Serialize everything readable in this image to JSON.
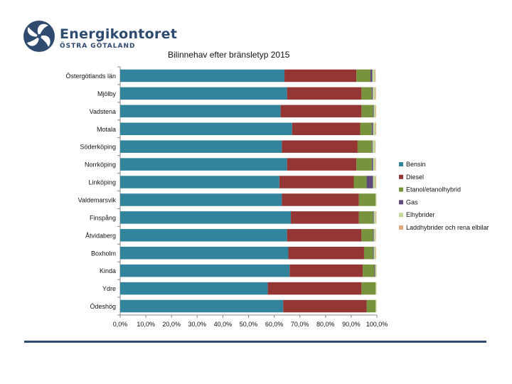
{
  "logo": {
    "name": "Energikontoret",
    "subtitle": "ÖSTRA GÖTALAND"
  },
  "chart_data": {
    "type": "bar",
    "orientation": "horizontal",
    "stacked": "percent",
    "title": "Bilinnehav efter bränsletyp 2015",
    "xlabel": "",
    "ylabel": "",
    "xlim": [
      0,
      100
    ],
    "xticks": [
      "0,0%",
      "10,0%",
      "20,0%",
      "30,0%",
      "40,0%",
      "50,0%",
      "60,0%",
      "70,0%",
      "80,0%",
      "90,0%",
      "100,0%"
    ],
    "legend_position": "right",
    "categories": [
      "Östergötlands län",
      "Mjölby",
      "Vadstena",
      "Motala",
      "Söderköping",
      "Norrköping",
      "Linköping",
      "Valdemarsvik",
      "Finspång",
      "Åtvidaberg",
      "Boxholm",
      "Kinda",
      "Ydre",
      "Ödeshög"
    ],
    "series": [
      {
        "name": "Bensin",
        "color": "#31849b",
        "values": [
          64.0,
          65.0,
          62.5,
          67.0,
          63.0,
          65.0,
          62.0,
          63.0,
          66.5,
          65.0,
          65.5,
          66.0,
          57.5,
          63.5
        ]
      },
      {
        "name": "Diesel",
        "color": "#943634",
        "values": [
          28.0,
          29.0,
          31.5,
          26.5,
          29.5,
          27.0,
          29.0,
          30.0,
          26.5,
          29.0,
          29.5,
          28.5,
          36.5,
          32.5
        ]
      },
      {
        "name": "Etanol/etanolhybrid",
        "color": "#77933c",
        "values": [
          5.5,
          4.0,
          4.5,
          4.5,
          5.5,
          6.0,
          5.0,
          6.5,
          5.5,
          4.5,
          3.5,
          4.5,
          5.5,
          3.5
        ]
      },
      {
        "name": "Gas",
        "color": "#5f497a",
        "values": [
          0.7,
          0.4,
          0.3,
          0.5,
          0.3,
          0.5,
          2.5,
          0.0,
          0.3,
          0.3,
          0.3,
          0.3,
          0.0,
          0.0
        ]
      },
      {
        "name": "Elhybrider",
        "color": "#c4d79b",
        "values": [
          1.0,
          0.9,
          0.7,
          0.9,
          1.0,
          0.8,
          0.9,
          0.3,
          0.8,
          0.6,
          0.7,
          0.5,
          0.3,
          0.3
        ]
      },
      {
        "name": "Laddhybrider och rena elbilar",
        "color": "#e3a87a",
        "values": [
          0.3,
          0.3,
          0.2,
          0.3,
          0.2,
          0.3,
          0.3,
          0.1,
          0.2,
          0.2,
          0.2,
          0.1,
          0.1,
          0.1
        ]
      }
    ]
  }
}
